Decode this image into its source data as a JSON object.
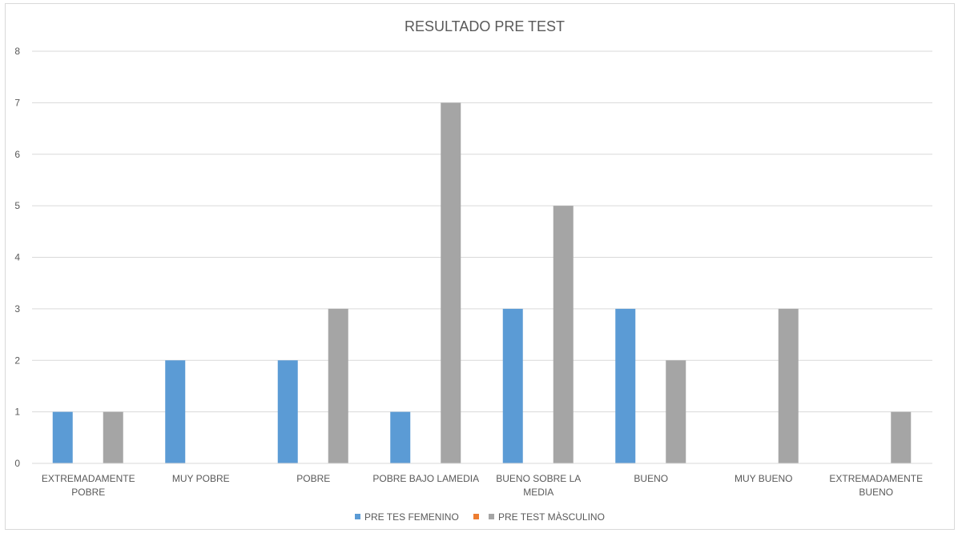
{
  "chart_data": {
    "type": "bar",
    "title": "RESULTADO PRE TEST",
    "xlabel": "",
    "ylabel": "",
    "ylim": [
      0,
      8
    ],
    "yticks": [
      "0",
      "1",
      "2",
      "3",
      "4",
      "5",
      "6",
      "7",
      "8"
    ],
    "grid": true,
    "legend_position": "bottom",
    "categories": [
      [
        "EXTREMADAMENTE",
        "POBRE"
      ],
      [
        "MUY POBRE"
      ],
      [
        "POBRE"
      ],
      [
        "POBRE BAJO LAMEDIA"
      ],
      [
        "BUENO SOBRE LA",
        "MEDIA"
      ],
      [
        "BUENO"
      ],
      [
        "MUY BUENO"
      ],
      [
        "EXTREMADAMENTE",
        "BUENO"
      ]
    ],
    "series": [
      {
        "name": "PRE TES FEMENINO",
        "color": "#5b9bd5",
        "values": [
          1,
          2,
          2,
          1,
          3,
          3,
          0,
          0
        ]
      },
      {
        "name": "",
        "color": "#ed7d31",
        "values": [
          0,
          0,
          0,
          0,
          0,
          0,
          0,
          0
        ]
      },
      {
        "name": "PRE TEST MÀSCULINO",
        "color": "#a5a5a5",
        "values": [
          1,
          0,
          3,
          7,
          5,
          2,
          3,
          1
        ]
      }
    ]
  }
}
